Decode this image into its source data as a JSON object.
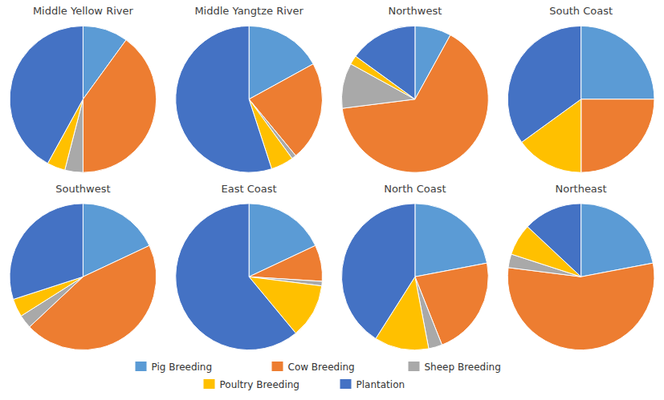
{
  "chart_data": [
    {
      "type": "pie",
      "title": "Middle Yellow River",
      "categories": [
        "Pig Breeding",
        "Cow Breeding",
        "Sheep Breeding",
        "Poultry Breeding",
        "Plantation"
      ],
      "values": [
        10,
        40,
        4,
        4,
        42
      ],
      "colors": [
        "#5B9BD5",
        "#ED7D31",
        "#A9A9A9",
        "#FFC000",
        "#4472C4"
      ],
      "legend": "bottom"
    },
    {
      "type": "pie",
      "title": "Middle Yangtze River",
      "categories": [
        "Pig Breeding",
        "Cow Breeding",
        "Sheep Breeding",
        "Poultry Breeding",
        "Plantation"
      ],
      "values": [
        17,
        22,
        1,
        5,
        55
      ],
      "colors": [
        "#5B9BD5",
        "#ED7D31",
        "#A9A9A9",
        "#FFC000",
        "#4472C4"
      ]
    },
    {
      "type": "pie",
      "title": "Northwest",
      "categories": [
        "Pig Breeding",
        "Cow Breeding",
        "Sheep Breeding",
        "Poultry Breeding",
        "Plantation"
      ],
      "values": [
        8,
        65,
        10,
        2,
        15
      ],
      "colors": [
        "#5B9BD5",
        "#ED7D31",
        "#A9A9A9",
        "#FFC000",
        "#4472C4"
      ]
    },
    {
      "type": "pie",
      "title": "South Coast",
      "categories": [
        "Pig Breeding",
        "Cow Breeding",
        "Sheep Breeding",
        "Poultry Breeding",
        "Plantation"
      ],
      "values": [
        25,
        25,
        0,
        15,
        35
      ],
      "colors": [
        "#5B9BD5",
        "#ED7D31",
        "#A9A9A9",
        "#FFC000",
        "#4472C4"
      ]
    },
    {
      "type": "pie",
      "title": "Southwest",
      "categories": [
        "Pig Breeding",
        "Cow Breeding",
        "Sheep Breeding",
        "Poultry Breeding",
        "Plantation"
      ],
      "values": [
        18,
        45,
        3,
        4,
        30
      ],
      "colors": [
        "#5B9BD5",
        "#ED7D31",
        "#A9A9A9",
        "#FFC000",
        "#4472C4"
      ]
    },
    {
      "type": "pie",
      "title": "East Coast",
      "categories": [
        "Pig Breeding",
        "Cow Breeding",
        "Sheep Breeding",
        "Poultry Breeding",
        "Plantation"
      ],
      "values": [
        18,
        8,
        1,
        12,
        61
      ],
      "colors": [
        "#5B9BD5",
        "#ED7D31",
        "#A9A9A9",
        "#FFC000",
        "#4472C4"
      ]
    },
    {
      "type": "pie",
      "title": "North Coast",
      "categories": [
        "Pig Breeding",
        "Cow Breeding",
        "Sheep Breeding",
        "Poultry Breeding",
        "Plantation"
      ],
      "values": [
        22,
        22,
        3,
        12,
        41
      ],
      "colors": [
        "#5B9BD5",
        "#ED7D31",
        "#A9A9A9",
        "#FFC000",
        "#4472C4"
      ]
    },
    {
      "type": "pie",
      "title": "Northeast",
      "categories": [
        "Pig Breeding",
        "Cow Breeding",
        "Sheep Breeding",
        "Poultry Breeding",
        "Plantation"
      ],
      "values": [
        22,
        55,
        3,
        7,
        13
      ],
      "colors": [
        "#5B9BD5",
        "#ED7D31",
        "#A9A9A9",
        "#FFC000",
        "#4472C4"
      ]
    }
  ]
}
